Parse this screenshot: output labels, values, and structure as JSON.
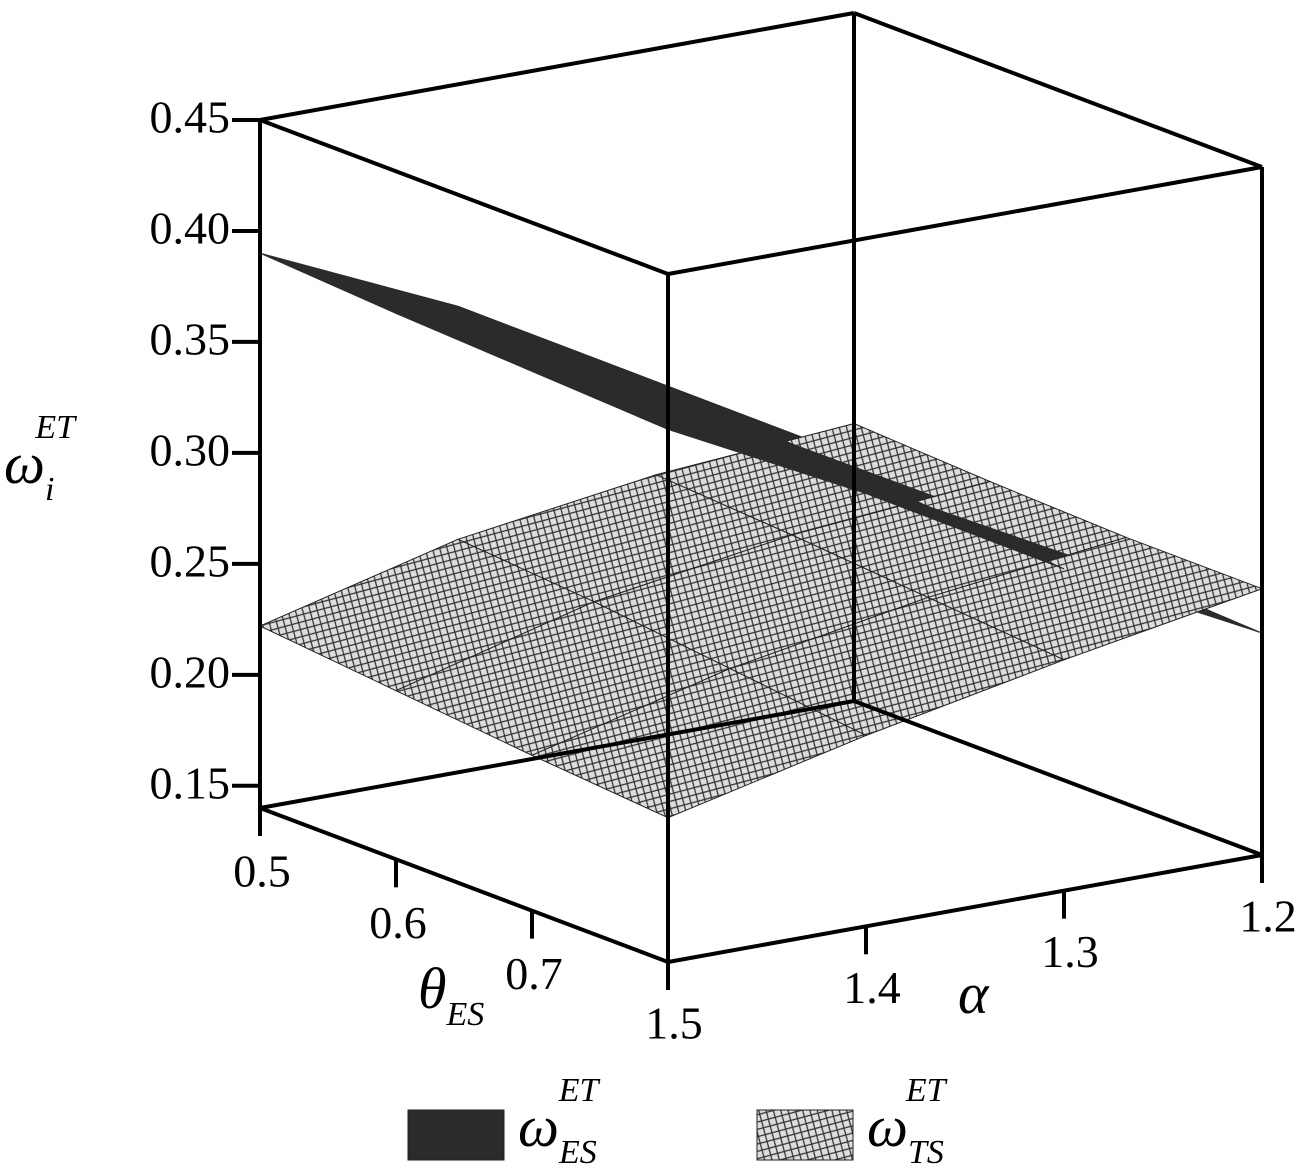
{
  "chart_data": {
    "type": "surface3d",
    "xlabel": {
      "base": "θ",
      "sub": "ES"
    },
    "ylabel": {
      "base": "α"
    },
    "zlabel": {
      "base": "ω",
      "sub": "i",
      "sup": "ET"
    },
    "x": [
      0.5,
      0.6,
      0.7,
      0.8
    ],
    "y": [
      1.5,
      1.4,
      1.3,
      1.2
    ],
    "xlim": [
      0.5,
      0.8
    ],
    "ylim": [
      1.5,
      1.2
    ],
    "zlim": [
      0.14,
      0.45
    ],
    "xticks": [
      0.5,
      0.6,
      0.7
    ],
    "yticks": [
      1.5,
      1.4,
      1.3,
      1.2
    ],
    "zticks": [
      0.15,
      {
        "value": 0.2,
        "label": "0.20"
      },
      0.25,
      {
        "value": 0.3,
        "label": "0.30"
      },
      0.35,
      {
        "value": 0.4,
        "label": "0.40"
      },
      0.45
    ],
    "series": [
      {
        "name": {
          "base": "ω",
          "sub": "ES",
          "sup": "ET"
        },
        "color": "#2b2b2b",
        "values": [
          [
            0.39,
            0.35,
            0.3,
            0.25
          ],
          [
            0.386,
            0.345,
            0.295,
            0.246
          ],
          [
            0.383,
            0.34,
            0.29,
            0.243
          ],
          [
            0.38,
            0.335,
            0.285,
            0.24
          ]
        ]
      },
      {
        "name": {
          "base": "ω",
          "sub": "TS",
          "sup": "ET"
        },
        "color": "#d4d4d4",
        "values": [
          [
            0.222,
            0.245,
            0.258,
            0.265
          ],
          [
            0.216,
            0.24,
            0.254,
            0.262
          ],
          [
            0.21,
            0.233,
            0.249,
            0.26
          ],
          [
            0.205,
            0.226,
            0.244,
            0.26
          ]
        ]
      }
    ]
  }
}
